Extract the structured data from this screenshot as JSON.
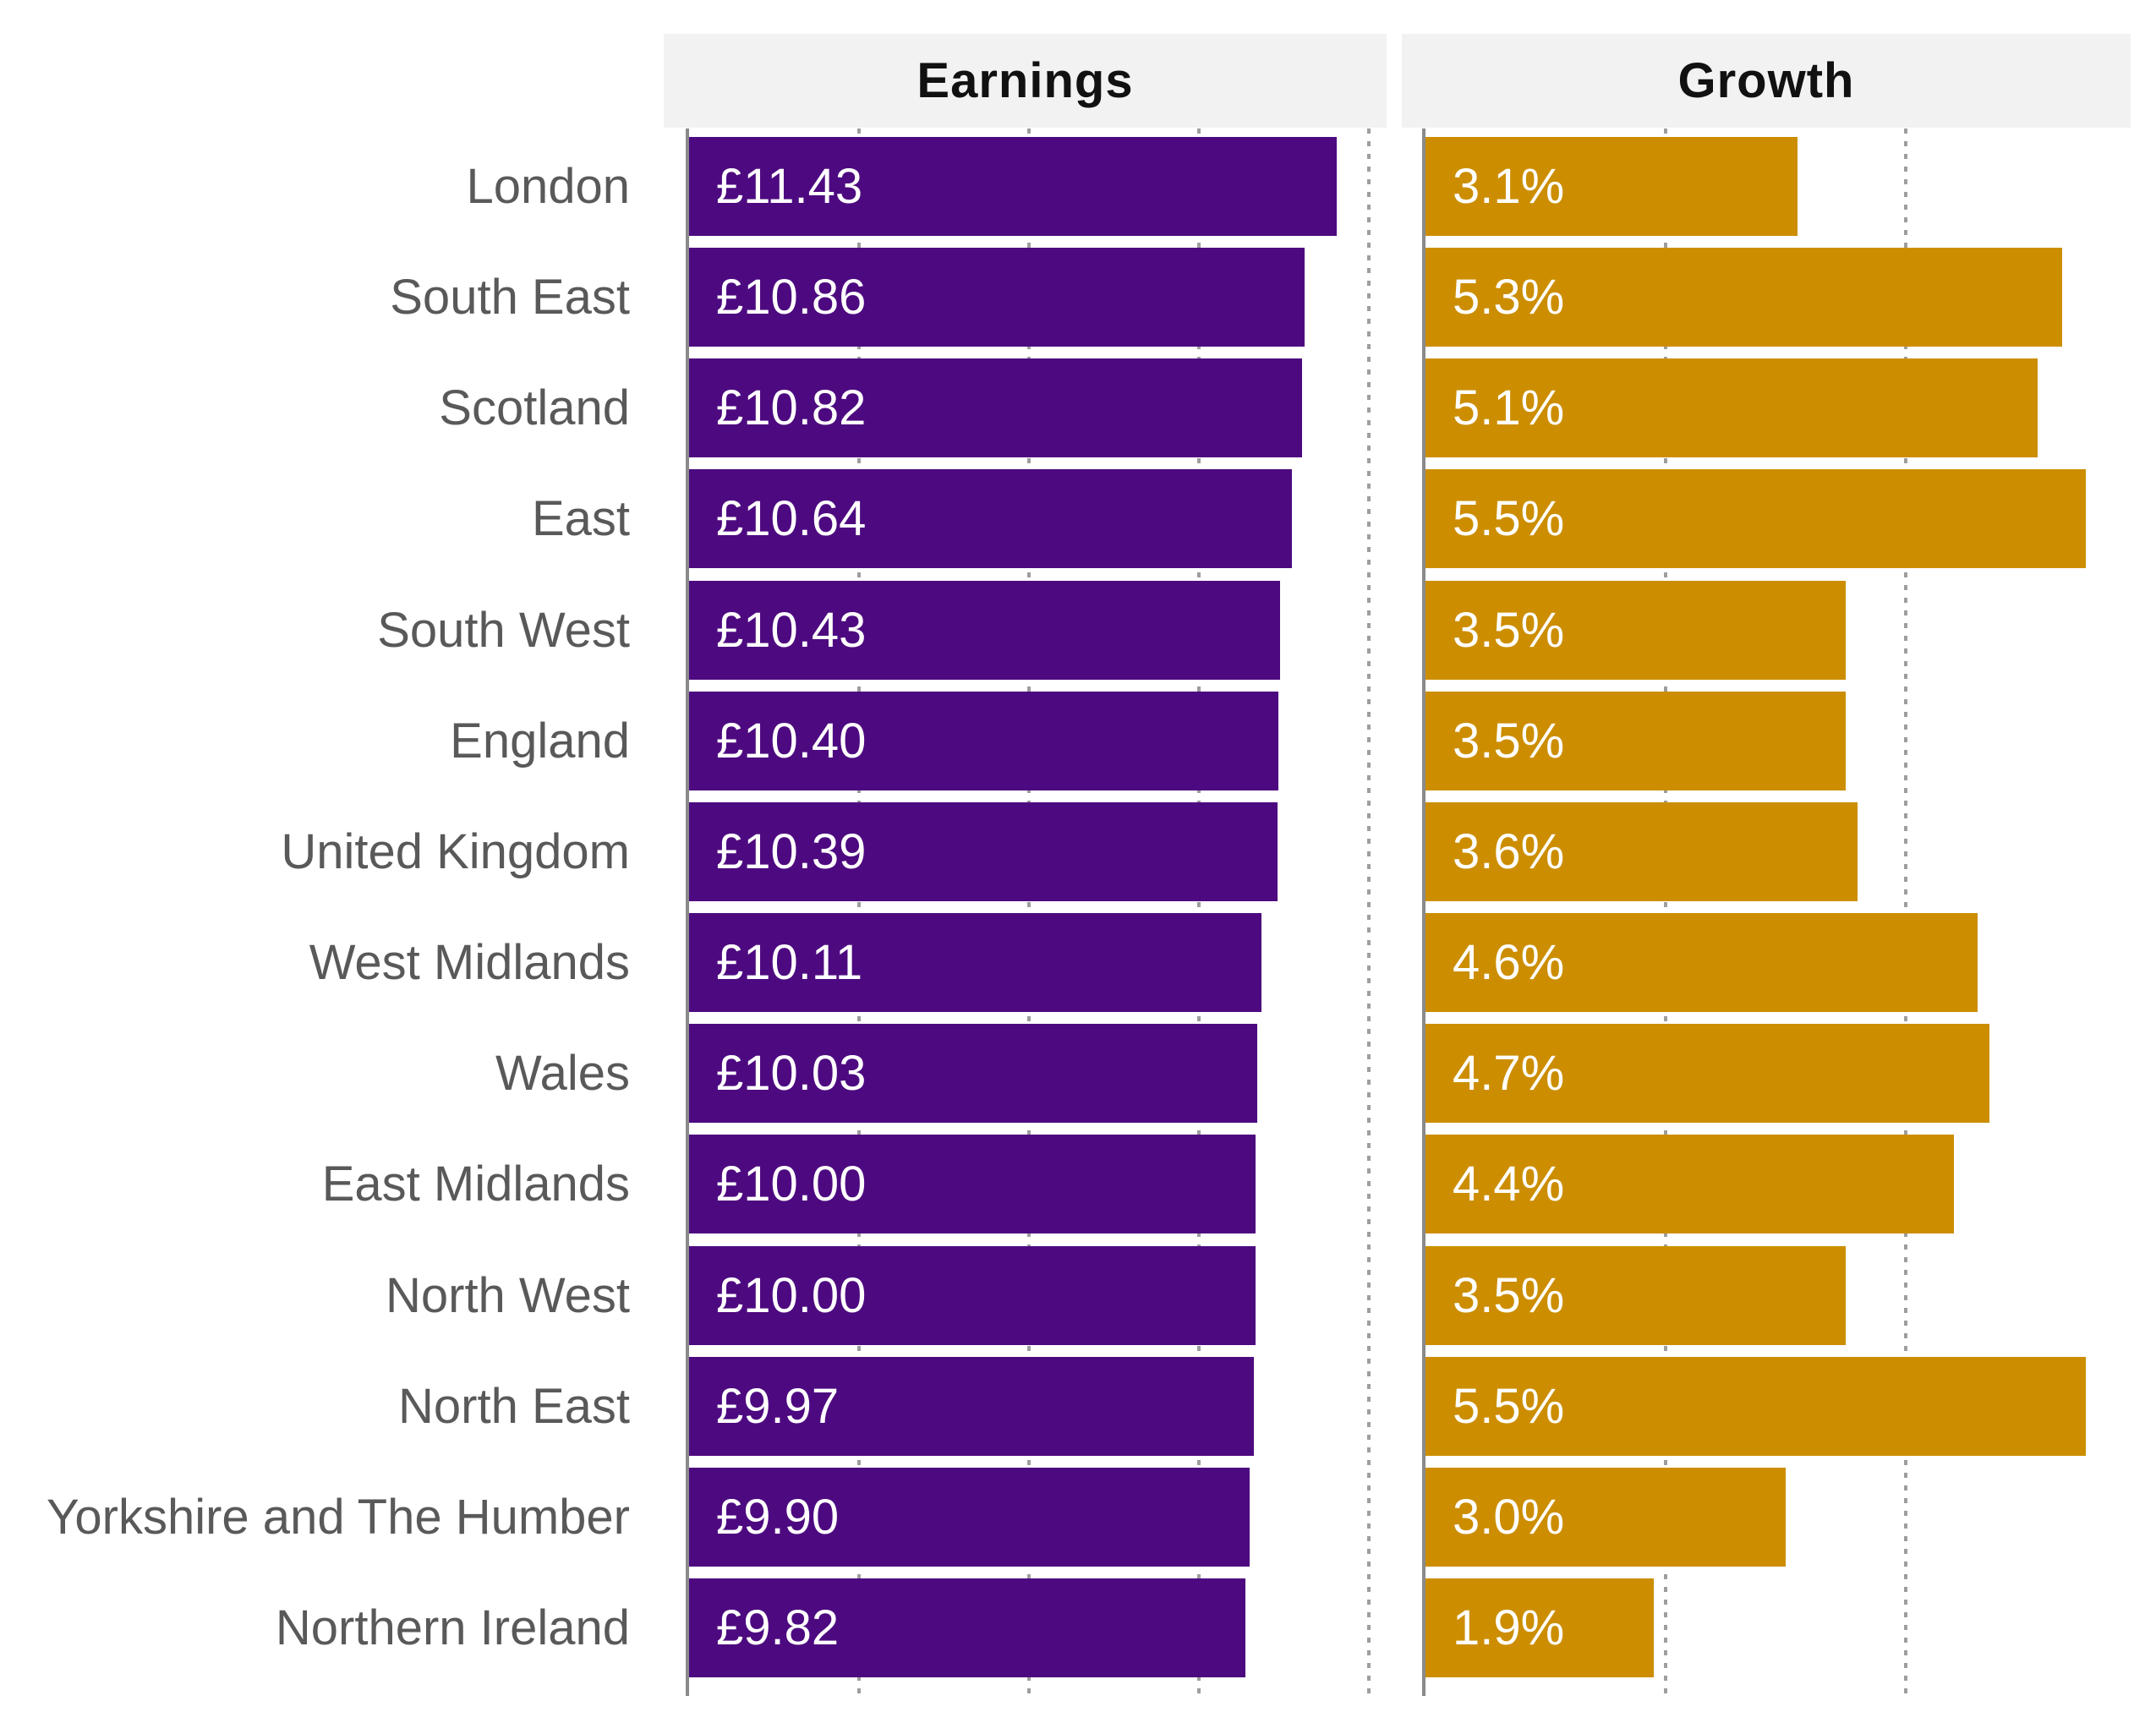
{
  "chart_data": {
    "type": "bar",
    "orientation": "horizontal",
    "title": "",
    "categories": [
      "London",
      "South East",
      "Scotland",
      "East",
      "South West",
      "England",
      "United Kingdom",
      "West Midlands",
      "Wales",
      "East Midlands",
      "North West",
      "North East",
      "Yorkshire and The Humber",
      "Northern Ireland"
    ],
    "series": [
      {
        "name": "Earnings",
        "unit": "GBP per hour",
        "values": [
          11.43,
          10.86,
          10.82,
          10.64,
          10.43,
          10.4,
          10.39,
          10.11,
          10.03,
          10.0,
          10.0,
          9.97,
          9.9,
          9.82
        ],
        "value_labels": [
          "£11.43",
          "£10.86",
          "£10.82",
          "£10.64",
          "£10.43",
          "£10.40",
          "£10.39",
          "£10.11",
          "£10.03",
          "£10.00",
          "£10.00",
          "£9.97",
          "£9.90",
          "£9.82"
        ],
        "bar_color": "#4D0A80",
        "axis": {
          "min": 0,
          "max": 12.3,
          "gridlines": [
            3,
            6,
            9,
            12
          ]
        }
      },
      {
        "name": "Growth",
        "unit": "percent",
        "values": [
          3.1,
          5.3,
          5.1,
          5.5,
          3.5,
          3.5,
          3.6,
          4.6,
          4.7,
          4.4,
          3.5,
          5.5,
          3.0,
          1.9
        ],
        "value_labels": [
          "3.1%",
          "5.3%",
          "5.1%",
          "5.5%",
          "3.5%",
          "3.5%",
          "3.6%",
          "4.6%",
          "4.7%",
          "4.4%",
          "3.5%",
          "5.5%",
          "3.0%",
          "1.9%"
        ],
        "bar_color": "#CC8E00",
        "axis": {
          "min": 0,
          "max": 5.9,
          "gridlines": [
            2,
            4
          ]
        }
      }
    ],
    "legend_position": "none",
    "grid": "dotted vertical gridlines behind bars",
    "ylabel": "",
    "xlabel": ""
  },
  "styles": {
    "background": "#FFFFFF",
    "header_bg": "#F2F2F2",
    "header_text": "#111111",
    "category_label_color": "#595959",
    "bar_value_color": "#FFFFFF",
    "axis_line_color": "#8A8A8A",
    "gridline_dot_color": "#9E9E9E"
  }
}
